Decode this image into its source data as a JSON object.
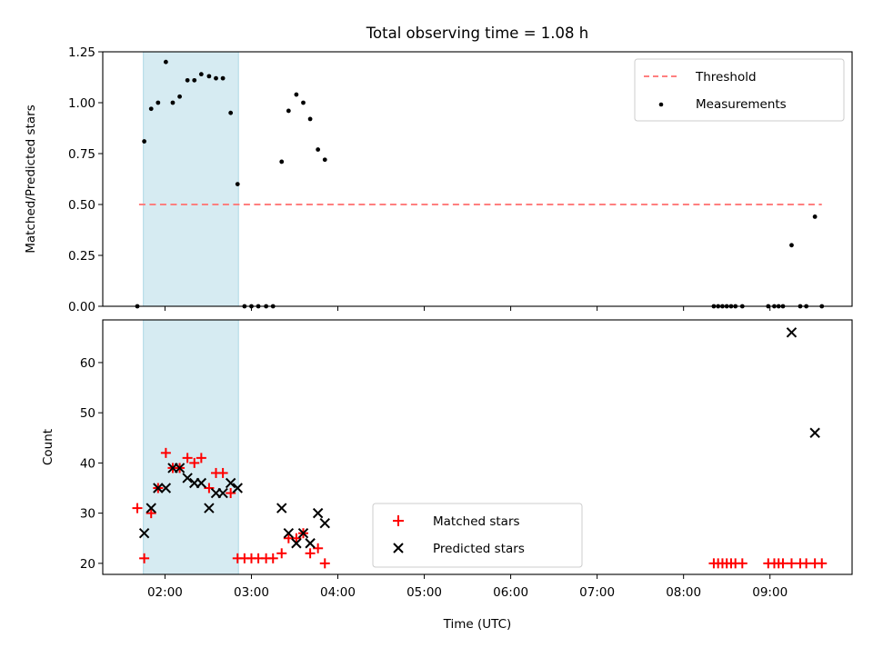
{
  "chart_data": {
    "title": "Total observing time = 1.08 h",
    "xlabel": "Time (UTC)",
    "x_unit": "hours (UTC)",
    "xlim": [
      1.28,
      9.95
    ],
    "x_ticks": [
      {
        "value": 2,
        "label": "02:00"
      },
      {
        "value": 3,
        "label": "03:00"
      },
      {
        "value": 4,
        "label": "04:00"
      },
      {
        "value": 5,
        "label": "05:00"
      },
      {
        "value": 6,
        "label": "06:00"
      },
      {
        "value": 7,
        "label": "07:00"
      },
      {
        "value": 8,
        "label": "08:00"
      },
      {
        "value": 9,
        "label": "09:00"
      }
    ],
    "highlight_span": {
      "x": [
        1.75,
        2.85
      ],
      "color": "#add8e6"
    },
    "colors": {
      "threshold": "#ff7f7f",
      "measurements": "#000000",
      "matched": "#ff0000",
      "predicted": "#000000"
    },
    "panels": [
      {
        "type": "scatter",
        "ylabel": "Matched/Predicted stars",
        "ylim": [
          0,
          1.25
        ],
        "y_ticks": [
          {
            "value": 0,
            "label": "0.00"
          },
          {
            "value": 0.25,
            "label": "0.25"
          },
          {
            "value": 0.5,
            "label": "0.50"
          },
          {
            "value": 0.75,
            "label": "0.75"
          },
          {
            "value": 1.0,
            "label": "1.00"
          },
          {
            "value": 1.25,
            "label": "1.25"
          }
        ],
        "legend": {
          "position": "upper right",
          "entries": [
            "Threshold",
            "Measurements"
          ]
        },
        "threshold": {
          "name": "Threshold",
          "y": 0.5,
          "x": [
            1.7,
            9.6
          ]
        },
        "series": [
          {
            "name": "Measurements",
            "x": [
              1.68,
              1.76,
              1.84,
              1.92,
              2.01,
              2.09,
              2.17,
              2.26,
              2.34,
              2.42,
              2.51,
              2.59,
              2.67,
              2.76,
              2.84,
              2.92,
              3.0,
              3.08,
              3.17,
              3.25,
              3.35,
              3.43,
              3.52,
              3.6,
              3.68,
              3.77,
              3.85,
              8.35,
              8.4,
              8.45,
              8.5,
              8.55,
              8.6,
              8.68,
              8.98,
              9.05,
              9.1,
              9.15,
              9.25,
              9.35,
              9.42,
              9.52,
              9.6
            ],
            "y": [
              0.0,
              0.81,
              0.97,
              1.0,
              1.2,
              1.0,
              1.03,
              1.11,
              1.11,
              1.14,
              1.13,
              1.12,
              1.12,
              0.95,
              0.6,
              0.0,
              0.0,
              0.0,
              0.0,
              0.0,
              0.71,
              0.96,
              1.04,
              1.0,
              0.92,
              0.77,
              0.72,
              0.0,
              0.0,
              0.0,
              0.0,
              0.0,
              0.0,
              0.0,
              0.0,
              0.0,
              0.0,
              0.0,
              0.3,
              0.0,
              0.0,
              0.44,
              0.0
            ]
          }
        ]
      },
      {
        "type": "scatter",
        "ylabel": "Count",
        "ylim": [
          17.8,
          68.5
        ],
        "y_ticks": [
          {
            "value": 20,
            "label": "20"
          },
          {
            "value": 30,
            "label": "30"
          },
          {
            "value": 40,
            "label": "40"
          },
          {
            "value": 50,
            "label": "50"
          },
          {
            "value": 60,
            "label": "60"
          }
        ],
        "legend": {
          "position": "lower center",
          "entries": [
            "Matched stars",
            "Predicted stars"
          ]
        },
        "series": [
          {
            "name": "Matched stars",
            "marker": "plus",
            "x": [
              1.68,
              1.76,
              1.84,
              1.92,
              2.01,
              2.09,
              2.17,
              2.26,
              2.34,
              2.42,
              2.51,
              2.59,
              2.67,
              2.76,
              2.84,
              2.92,
              3.0,
              3.08,
              3.17,
              3.25,
              3.35,
              3.43,
              3.52,
              3.6,
              3.68,
              3.77,
              3.85,
              8.35,
              8.4,
              8.45,
              8.5,
              8.55,
              8.6,
              8.68,
              8.98,
              9.05,
              9.1,
              9.15,
              9.25,
              9.35,
              9.42,
              9.52,
              9.6
            ],
            "y": [
              31,
              21,
              30,
              35,
              42,
              39,
              39,
              41,
              40,
              41,
              35,
              38,
              38,
              34,
              21,
              21,
              21,
              21,
              21,
              21,
              22,
              25,
              25,
              26,
              22,
              23,
              20,
              20,
              20,
              20,
              20,
              20,
              20,
              20,
              20,
              20,
              20,
              20,
              20,
              20,
              20,
              20,
              20
            ]
          },
          {
            "name": "Predicted stars",
            "marker": "x",
            "x": [
              1.76,
              1.84,
              1.92,
              2.01,
              2.09,
              2.17,
              2.26,
              2.34,
              2.42,
              2.51,
              2.59,
              2.67,
              2.76,
              2.84,
              3.35,
              3.43,
              3.52,
              3.6,
              3.68,
              3.77,
              3.85,
              9.25,
              9.52
            ],
            "y": [
              26,
              31,
              35,
              35,
              39,
              39,
              37,
              36,
              36,
              31,
              34,
              34,
              36,
              35,
              31,
              26,
              24,
              26,
              24,
              30,
              28,
              66,
              46
            ]
          }
        ]
      }
    ]
  }
}
